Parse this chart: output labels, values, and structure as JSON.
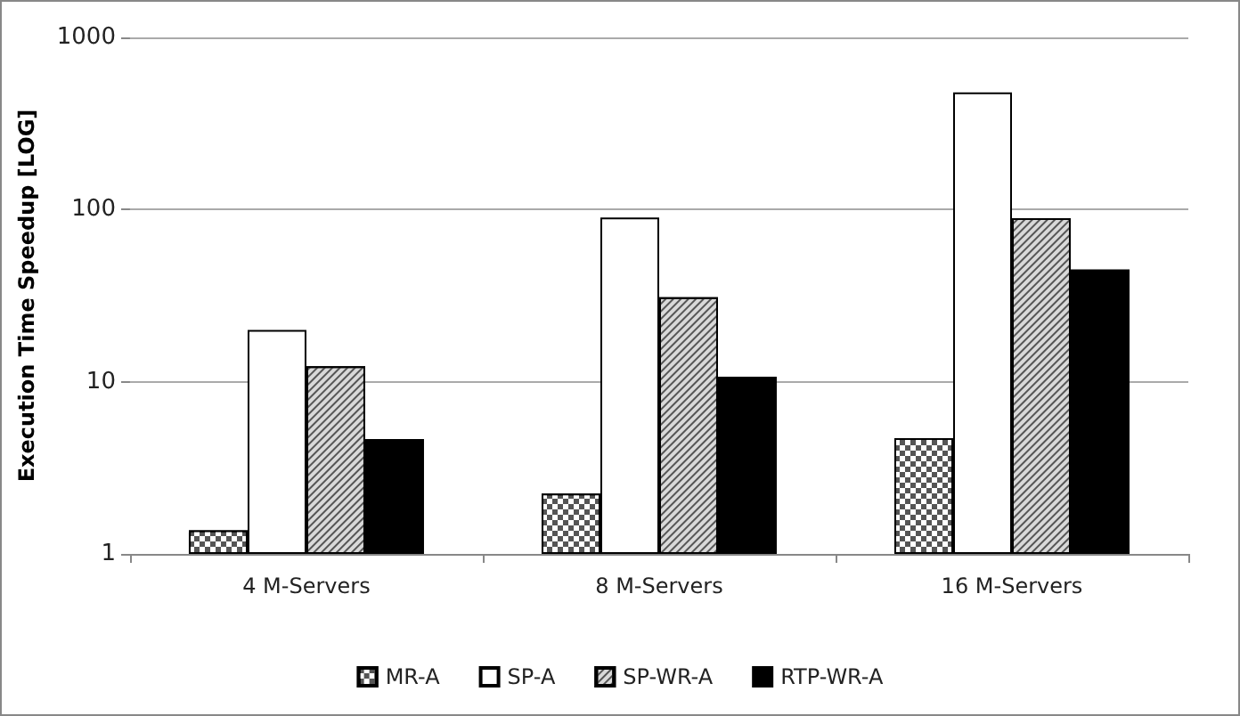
{
  "chart_data": {
    "type": "bar",
    "ylabel": "Execution Time Speedup [LOG]",
    "categories": [
      "4 M-Servers",
      "8 M-Servers",
      "16 M-Servers"
    ],
    "series": [
      {
        "name": "MR-A",
        "color": "#555555",
        "values": [
          1.37,
          2.24,
          4.7
        ]
      },
      {
        "name": "SP-A",
        "color": "#ffffff",
        "values": [
          20,
          90,
          480
        ]
      },
      {
        "name": "SP-WR-A",
        "color": "#d9d9d9",
        "values": [
          12.3,
          31,
          89
        ]
      },
      {
        "name": "RTP-WR-A",
        "color": "#000000",
        "values": [
          4.65,
          10.7,
          45
        ]
      }
    ],
    "log": "y",
    "ylim": [
      1,
      1000
    ],
    "yticks": [
      1,
      10,
      100,
      1000
    ],
    "grid": "y",
    "legend": "bottom"
  }
}
